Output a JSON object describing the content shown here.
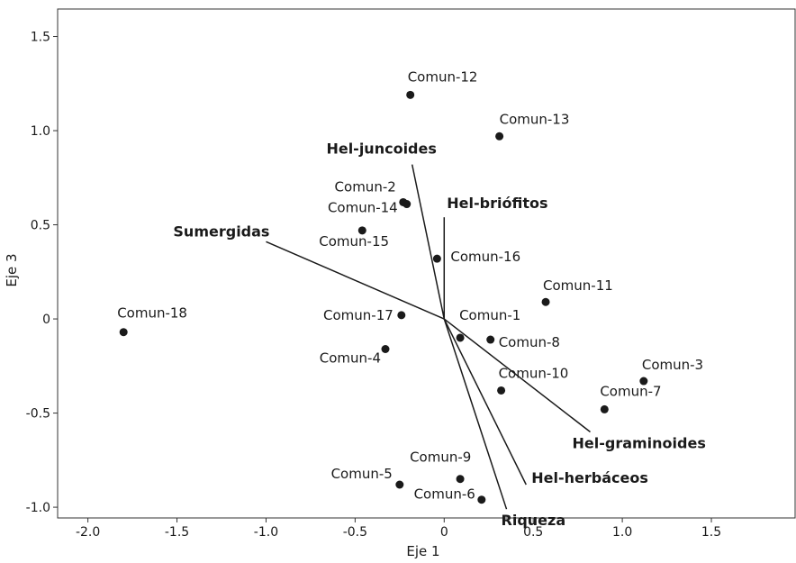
{
  "chart_data": {
    "type": "biplot",
    "xlabel": "Eje 1",
    "ylabel": "Eje 3",
    "xlim": [
      -2.17,
      1.97
    ],
    "ylim": [
      -1.057,
      1.646
    ],
    "xticks": [
      {
        "value": -2,
        "label": "-2.0"
      },
      -1.5,
      {
        "value": -1,
        "label": "-1.0"
      },
      -0.5,
      0,
      0.5,
      {
        "value": 1,
        "label": "1.0"
      },
      1.5
    ],
    "yticks": [
      {
        "value": -1,
        "label": "-1.0"
      },
      -0.5,
      0,
      0.5,
      {
        "value": 1,
        "label": "1.0"
      },
      1.5
    ],
    "color": "#1a1a1a",
    "points": {
      "labels": [
        "Comun-12",
        "Comun-13",
        "Comun-2",
        "Comun-14",
        "Comun-15",
        "Comun-16",
        "Comun-11",
        "Comun-17",
        "Comun-1",
        "Comun-8",
        "Comun-4",
        "Comun-18",
        "Comun-10",
        "Comun-3",
        "Comun-7",
        "Comun-9",
        "Comun-5",
        "Comun-6"
      ],
      "x": [
        -0.19,
        0.31,
        -0.23,
        -0.21,
        -0.46,
        -0.04,
        0.57,
        -0.24,
        0.09,
        0.26,
        -0.33,
        -1.8,
        0.32,
        1.12,
        0.9,
        0.09,
        -0.25,
        0.21
      ],
      "y": [
        1.19,
        0.97,
        0.62,
        0.61,
        0.47,
        0.32,
        0.09,
        0.02,
        -0.1,
        -0.11,
        -0.16,
        -0.07,
        -0.38,
        -0.33,
        -0.48,
        -0.85,
        -0.88,
        -0.96
      ]
    },
    "vectors": {
      "labels": [
        "Sumergidas",
        "Hel-juncoides",
        "Hel-briófitos",
        "Hel-graminoides",
        "Hel-herbáceos",
        "Riqueza"
      ],
      "x": [
        -1.0,
        -0.18,
        0,
        0.82,
        0.46,
        0.35
      ],
      "y": [
        0.41,
        0.82,
        0.54,
        -0.6,
        -0.88,
        -1.01
      ]
    }
  }
}
